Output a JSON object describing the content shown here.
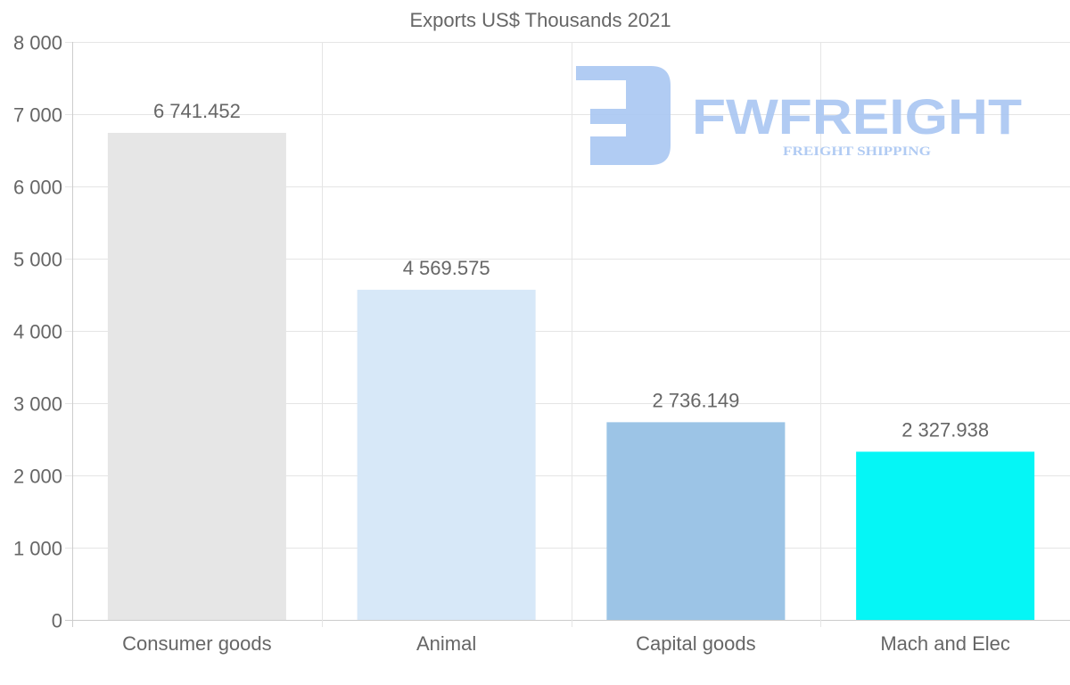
{
  "chart_data": {
    "type": "bar",
    "title": "Exports US$ Thousands 2021",
    "categories": [
      "Consumer goods",
      "Animal",
      "Capital goods",
      "Mach and Elec"
    ],
    "values": [
      6741.452,
      4569.575,
      2736.149,
      2327.938
    ],
    "value_labels": [
      "6 741.452",
      "4 569.575",
      "2 736.149",
      "2 327.938"
    ],
    "colors": [
      "#e6e6e6",
      "#d7e8f8",
      "#9cc4e6",
      "#05f6f6"
    ],
    "ylim": [
      0,
      8000
    ],
    "yticks": [
      0,
      1000,
      2000,
      3000,
      4000,
      5000,
      6000,
      7000,
      8000
    ],
    "ytick_labels": [
      "0",
      "1 000",
      "2 000",
      "3 000",
      "4 000",
      "5 000",
      "6 000",
      "7 000",
      "8 000"
    ],
    "xlabel": "",
    "ylabel": "",
    "grid": true,
    "legend": "none"
  },
  "watermark": {
    "brand": "FWFREIGHT",
    "tagline": "FREIGHT SHIPPING",
    "color": "#a9c6f2"
  }
}
